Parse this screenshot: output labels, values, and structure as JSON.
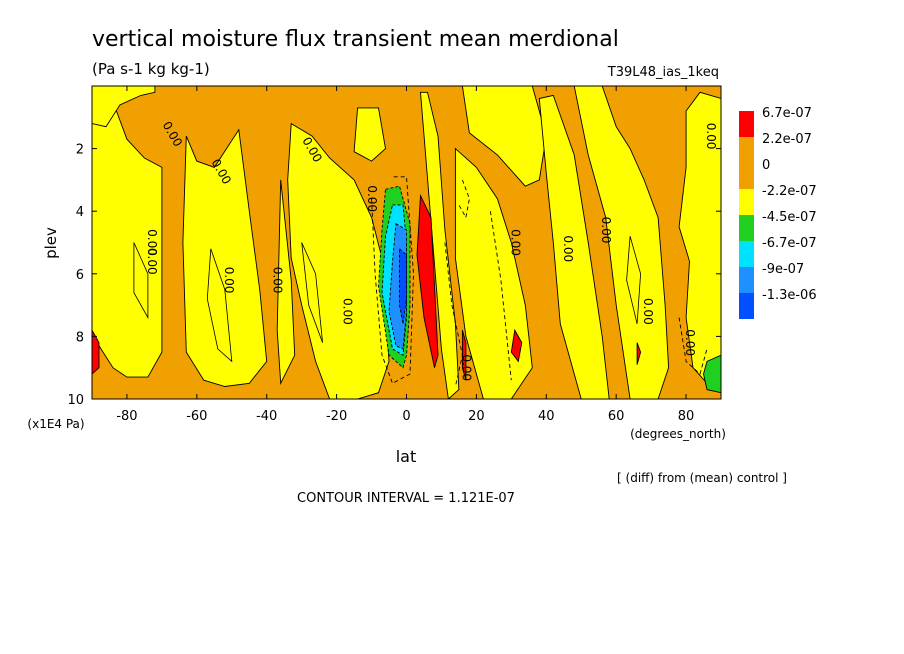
{
  "header": {
    "title": "vertical moisture flux transient mean merdional",
    "units": "(Pa s-1 kg kg-1)",
    "run_id": "T39L48_ias_1keq"
  },
  "footer": {
    "diff_note": "[ (diff) from (mean) control ]",
    "contour_interval": "CONTOUR INTERVAL = 1.121E-07"
  },
  "colors": {
    "red": "#ff0000",
    "orange": "#f0a000",
    "yellow": "#ffff00",
    "green": "#20d020",
    "cyan": "#00e0ff",
    "blue": "#1e90ff",
    "darkblue": "#0050ff",
    "line": "#000000"
  },
  "chart_data": {
    "type": "heatmap",
    "xlabel": "lat",
    "xunit": "(degrees_north)",
    "ylabel": "plev",
    "yunit": "(x1E4 Pa)",
    "xlim": [
      -90,
      90
    ],
    "ylim": [
      10,
      0
    ],
    "xticks": [
      -80,
      -60,
      -40,
      -20,
      0,
      20,
      40,
      60,
      80
    ],
    "xtick_labels": [
      "-80",
      "-60",
      "-40",
      "-20",
      "0",
      "20",
      "40",
      "60",
      "80"
    ],
    "yticks": [
      2,
      4,
      6,
      8,
      10
    ],
    "ytick_labels": [
      "2",
      "4",
      "6",
      "8",
      "10"
    ],
    "legend": {
      "labels": [
        "6.7e-07",
        "2.2e-07",
        "0",
        "-2.2e-07",
        "-4.5e-07",
        "-6.7e-07",
        "-9e-07",
        "-1.3e-06"
      ],
      "colors": [
        "#ff0000",
        "#f0a000",
        "#f0a000",
        "#ffff00",
        "#20d020",
        "#00e0ff",
        "#1e90ff",
        "#0050ff"
      ]
    },
    "contour_label": "0.00",
    "contour_interval": 1.121e-07
  }
}
